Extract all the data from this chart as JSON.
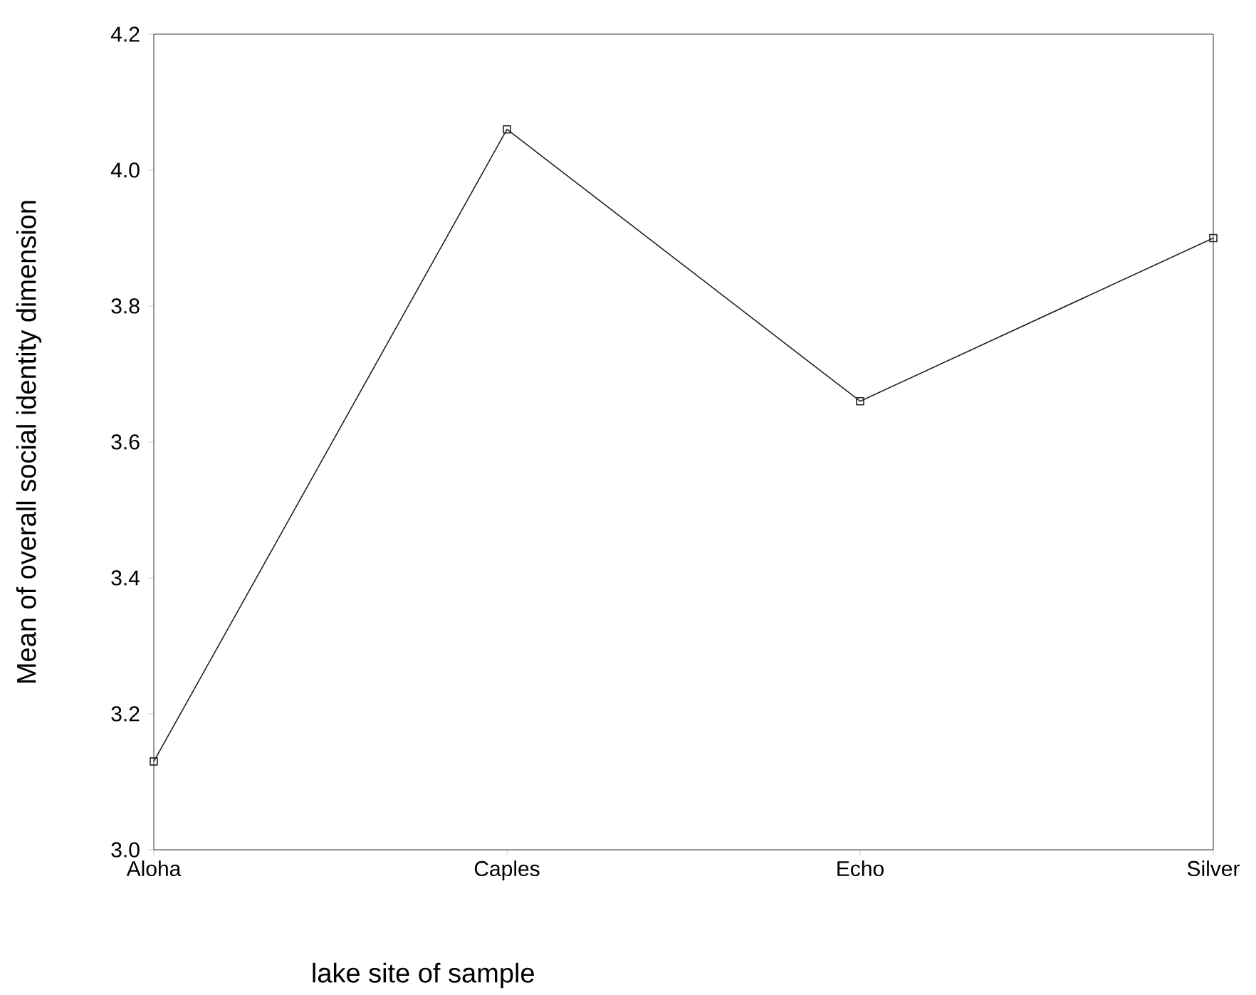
{
  "chart_data": {
    "type": "line",
    "xlabel": "lake site of sample",
    "ylabel": "Mean of overall social identity dimension",
    "categories": [
      "Aloha",
      "Caples",
      "Echo",
      "Silver"
    ],
    "series": [
      {
        "color": "#222222",
        "values": [
          3.13,
          4.06,
          3.66,
          3.9
        ]
      }
    ],
    "ylim": [
      3.0,
      4.2
    ],
    "yticks": [
      {
        "value": 3.0,
        "label": "3.0"
      },
      {
        "value": 3.2,
        "label": "3.2"
      },
      {
        "value": 3.4,
        "label": "3.4"
      },
      {
        "value": 3.6,
        "label": "3.6"
      },
      {
        "value": 3.8,
        "label": "3.8"
      },
      {
        "value": 4.0,
        "label": "4.0"
      },
      {
        "value": 4.2,
        "label": "4.2"
      }
    ],
    "marker": "square",
    "line_style": "solid"
  }
}
